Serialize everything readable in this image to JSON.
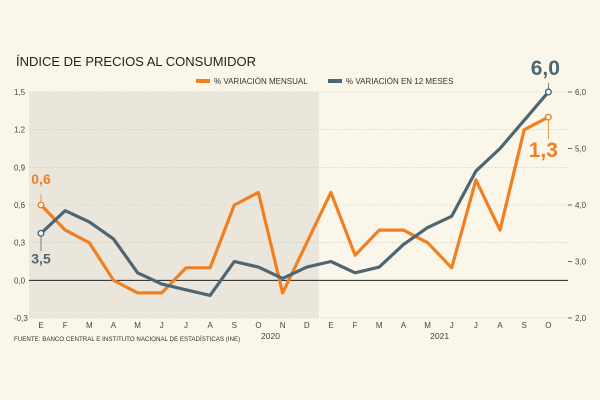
{
  "chart_data": {
    "type": "line",
    "title": "ÍNDICE DE PRECIOS AL CONSUMIDOR",
    "source": "FUENTE: BANCO CENTRAL E INSTITUTO NACIONAL DE ESTADÍSTICAS (INE)",
    "categories": [
      "E",
      "F",
      "M",
      "A",
      "M",
      "J",
      "J",
      "A",
      "S",
      "O",
      "N",
      "D",
      "E",
      "F",
      "M",
      "A",
      "M",
      "J",
      "J",
      "A",
      "S",
      "O"
    ],
    "years": [
      {
        "label": "2020",
        "center_index": 9.5
      },
      {
        "label": "2021",
        "center_index": 16.5
      }
    ],
    "shaded_range": [
      0,
      11.5
    ],
    "left_axis": {
      "ylim": [
        -0.3,
        1.5
      ],
      "ticks": [
        -0.3,
        0.0,
        0.3,
        0.6,
        0.9,
        1.2,
        1.5
      ],
      "tick_labels": [
        "-0,3",
        "0,0",
        "0,3",
        "0,6",
        "0,9",
        "1,2",
        "1,5"
      ]
    },
    "right_axis": {
      "ylim": [
        2.0,
        6.0
      ],
      "ticks": [
        2.0,
        3.0,
        4.0,
        5.0,
        6.0
      ],
      "tick_labels": [
        "2,0",
        "3,0",
        "4,0",
        "5,0",
        "6,0"
      ]
    },
    "series": [
      {
        "name": "% VARIACIÓN MENSUAL",
        "axis": "left",
        "color": "#f07f22",
        "values": [
          0.6,
          0.4,
          0.3,
          0.0,
          -0.1,
          -0.1,
          0.1,
          0.1,
          0.6,
          0.7,
          -0.1,
          0.3,
          0.7,
          0.2,
          0.4,
          0.4,
          0.3,
          0.1,
          0.8,
          0.4,
          1.2,
          1.3
        ]
      },
      {
        "name": "% VARIACIÓN EN 12 MESES",
        "axis": "right",
        "color": "#4e6672",
        "values": [
          3.5,
          3.9,
          3.7,
          3.4,
          2.8,
          2.6,
          2.5,
          2.4,
          3.0,
          2.9,
          2.7,
          2.9,
          3.0,
          2.8,
          2.9,
          3.3,
          3.6,
          3.8,
          4.6,
          5.0,
          5.5,
          6.0
        ]
      }
    ],
    "annotations": [
      {
        "text": "0,6",
        "series": 0,
        "index": 0
      },
      {
        "text": "3,5",
        "series": 1,
        "index": 0
      },
      {
        "text": "6,0",
        "series": 1,
        "index": 21
      },
      {
        "text": "1,3",
        "series": 0,
        "index": 21
      }
    ]
  }
}
